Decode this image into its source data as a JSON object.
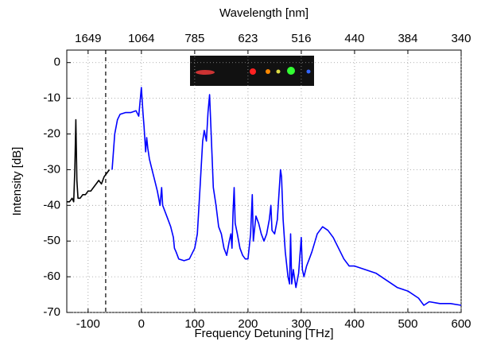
{
  "chart_data": {
    "type": "line",
    "xlabel": "Frequency Detuning [THz]",
    "ylabel": "Intensity [dB]",
    "x2label": "Wavelength [nm]",
    "xlim": [
      -140,
      600
    ],
    "ylim": [
      -70,
      3.5
    ],
    "xticks": [
      -100,
      0,
      100,
      200,
      300,
      400,
      500,
      600
    ],
    "yticks": [
      -70,
      -60,
      -50,
      -40,
      -30,
      -20,
      -10,
      0
    ],
    "x2ticks": [
      {
        "value": -100,
        "label": "1649"
      },
      {
        "value": 0,
        "label": "1064"
      },
      {
        "value": 100,
        "label": "785"
      },
      {
        "value": 200,
        "label": "623"
      },
      {
        "value": 300,
        "label": "516"
      },
      {
        "value": 400,
        "label": "440"
      },
      {
        "value": 500,
        "label": "384"
      },
      {
        "value": 600,
        "label": "340"
      }
    ],
    "grid": true,
    "vline_x": -67,
    "series": [
      {
        "name": "blue spectrum",
        "color": "#0000ff",
        "x": [
          -55,
          -50,
          -45,
          -40,
          -30,
          -20,
          -10,
          -5,
          0,
          3,
          5,
          8,
          10,
          12,
          15,
          20,
          25,
          30,
          35,
          38,
          40,
          45,
          50,
          55,
          60,
          62,
          65,
          70,
          80,
          90,
          100,
          105,
          110,
          115,
          118,
          122,
          125,
          128,
          131,
          135,
          140,
          145,
          150,
          155,
          160,
          165,
          168,
          170,
          172,
          174,
          176,
          180,
          185,
          190,
          195,
          200,
          205,
          208,
          210,
          215,
          220,
          225,
          230,
          235,
          240,
          243,
          245,
          250,
          255,
          258,
          261,
          263,
          266,
          270,
          275,
          278,
          280,
          282,
          285,
          290,
          295,
          300,
          302,
          305,
          310,
          315,
          320,
          330,
          340,
          350,
          360,
          370,
          380,
          390,
          400,
          420,
          440,
          460,
          480,
          500,
          520,
          530,
          540,
          560,
          580,
          600
        ],
        "values": [
          -30,
          -20,
          -16,
          -14.5,
          -14,
          -14,
          -13.5,
          -15,
          -7,
          -14,
          -18,
          -25,
          -21,
          -24,
          -27,
          -30,
          -33,
          -36,
          -40,
          -35,
          -40,
          -42,
          -44,
          -46,
          -49,
          -52,
          -53,
          -55,
          -55.5,
          -55,
          -52,
          -48,
          -35,
          -22,
          -19,
          -22,
          -14,
          -9,
          -20,
          -35,
          -40,
          -46,
          -48,
          -52,
          -54,
          -50,
          -48,
          -52,
          -42,
          -35,
          -45,
          -48,
          -52,
          -54,
          -55,
          -55,
          -48,
          -37,
          -50,
          -43,
          -45,
          -48,
          -50,
          -48,
          -44,
          -40,
          -47,
          -48,
          -44,
          -37,
          -30,
          -32,
          -44,
          -53,
          -60,
          -62,
          -48,
          -62,
          -58,
          -63,
          -59,
          -49,
          -58,
          -60,
          -57,
          -55,
          -53,
          -48,
          -46,
          -47,
          -49,
          -52,
          -55,
          -57,
          -57,
          -58,
          -59,
          -61,
          -63,
          -64,
          -66,
          -68,
          -67,
          -67.5,
          -67.5,
          -68
        ]
      },
      {
        "name": "black spectrum",
        "color": "#000000",
        "x": [
          -140,
          -135,
          -130,
          -127,
          -125,
          -123,
          -121,
          -119,
          -115,
          -110,
          -105,
          -100,
          -95,
          -90,
          -85,
          -80,
          -75,
          -70,
          -65,
          -60
        ],
        "values": [
          -39,
          -39,
          -38,
          -39,
          -30,
          -16,
          -33,
          -38,
          -38,
          -37,
          -37,
          -36,
          -36,
          -35,
          -34,
          -33,
          -34,
          -32,
          -31,
          -30
        ]
      }
    ]
  }
}
